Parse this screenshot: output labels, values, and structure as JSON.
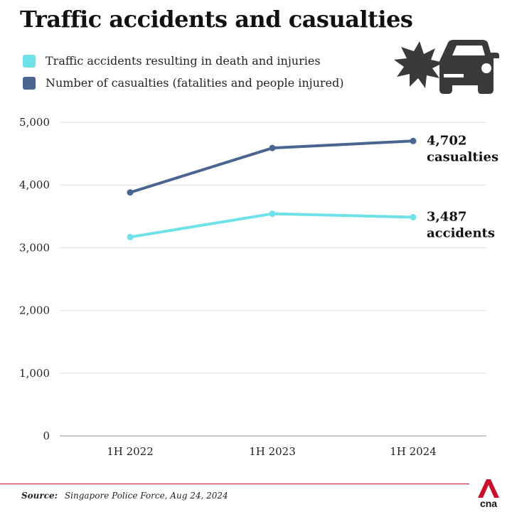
{
  "title": "Traffic accidents and casualties",
  "icons": {
    "illustration": "car-crash-icon",
    "logo": "cna-logo-icon"
  },
  "logo_text": "cna",
  "source": {
    "label": "Source:",
    "text": "Singapore Police Force, Aug 24, 2024"
  },
  "chart_data": {
    "type": "line",
    "categories": [
      "1H 2022",
      "1H 2023",
      "1H 2024"
    ],
    "series": [
      {
        "name": "Traffic accidents resulting in death and injuries",
        "values": [
          3171,
          3542,
          3487
        ],
        "color": "#6ee2e8",
        "end_label_value": "3,487",
        "end_label_text": "accidents"
      },
      {
        "name": "Number of casualties (fatalities and people injured)",
        "values": [
          3882,
          4590,
          4702
        ],
        "color": "#4a6591",
        "end_label_value": "4,702",
        "end_label_text": "casualties"
      }
    ],
    "yticks": [
      "0",
      "1,000",
      "2,000",
      "3,000",
      "4,000",
      "5,000"
    ],
    "ytick_values": [
      0,
      1000,
      2000,
      3000,
      4000,
      5000
    ],
    "ylim": [
      0,
      5000
    ],
    "grid": true,
    "legend_position": "top-left"
  }
}
